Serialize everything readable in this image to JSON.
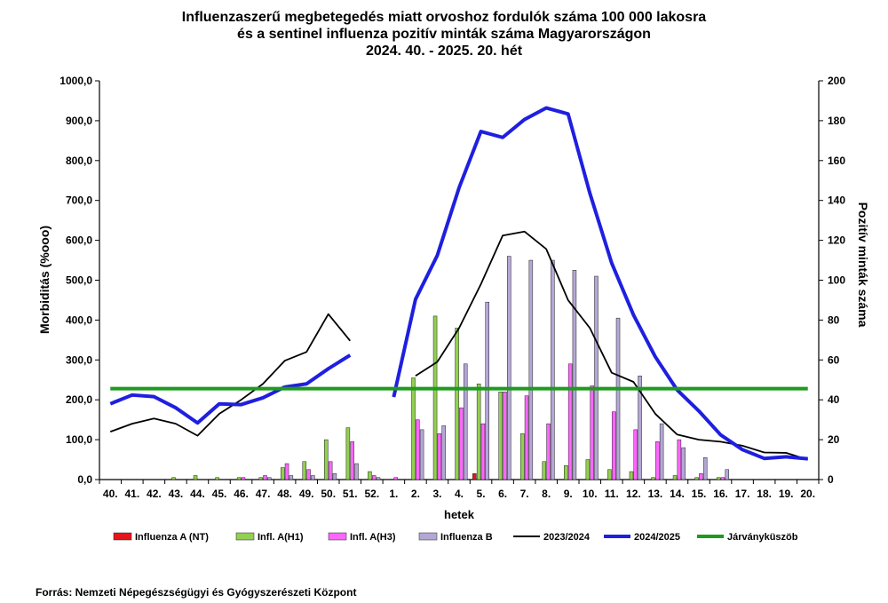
{
  "chart_data": {
    "type": "bar",
    "title": [
      "Influenzaszerű megbetegedés miatt orvoshoz fordulók száma 100 000 lakosra",
      "és a sentinel influenza pozitív minták száma Magyarországon",
      "2024. 40. - 2025. 20. hét"
    ],
    "xlabel": "hetek",
    "ylabel": "Morbiditás (%ooo)",
    "y2label": "Pozitív minták száma",
    "categories": [
      "40.",
      "41.",
      "42.",
      "43.",
      "44.",
      "45.",
      "46.",
      "47.",
      "48.",
      "49.",
      "50.",
      "51.",
      "52.",
      "1.",
      "2.",
      "3.",
      "4.",
      "5.",
      "6.",
      "7.",
      "8.",
      "9.",
      "10.",
      "11.",
      "12.",
      "13.",
      "14.",
      "15.",
      "16.",
      "17.",
      "18.",
      "19.",
      "20."
    ],
    "y_axis": {
      "min": 0,
      "max": 1000,
      "step": 100,
      "tick_labels": [
        "0,0",
        "100,0",
        "200,0",
        "300,0",
        "400,0",
        "500,0",
        "600,0",
        "700,0",
        "800,0",
        "900,0",
        "1000,0"
      ]
    },
    "y2_axis": {
      "min": 0,
      "max": 200,
      "step": 20,
      "tick_labels": [
        "0",
        "20",
        "40",
        "60",
        "80",
        "100",
        "120",
        "140",
        "160",
        "180",
        "200"
      ]
    },
    "bar_series": [
      {
        "name": "Influenza A (NT)",
        "color": "#e8141c",
        "axis": "right",
        "values": [
          0,
          0,
          0,
          0,
          0,
          0,
          0,
          0,
          0,
          0,
          0,
          0,
          0,
          0,
          0,
          0,
          0,
          3,
          0,
          0,
          0,
          0,
          0,
          0,
          0,
          0,
          0,
          0,
          0,
          0,
          0,
          0,
          0
        ]
      },
      {
        "name": "Infl. A(H1)",
        "color": "#92d050",
        "axis": "right",
        "values": [
          0,
          0,
          0,
          1,
          2,
          1,
          1,
          1,
          6,
          9,
          20,
          26,
          4,
          0,
          51,
          82,
          76,
          48,
          44,
          23,
          9,
          7,
          10,
          5,
          4,
          1,
          2,
          1,
          1,
          0,
          0,
          0,
          0
        ]
      },
      {
        "name": "Infl. A(H3)",
        "color": "#ff66ff",
        "axis": "right",
        "values": [
          0,
          0,
          0,
          0,
          0,
          0,
          1,
          2,
          8,
          5,
          9,
          19,
          2,
          1,
          30,
          23,
          36,
          28,
          44,
          42,
          28,
          58,
          47,
          34,
          25,
          19,
          20,
          3,
          1,
          0,
          0,
          0,
          0
        ]
      },
      {
        "name": "Influenza B",
        "color": "#b4a7d6",
        "axis": "right",
        "values": [
          0,
          0,
          0,
          0,
          0,
          0,
          0,
          1,
          2,
          2,
          3,
          8,
          1,
          0,
          25,
          27,
          58,
          89,
          112,
          110,
          110,
          105,
          102,
          81,
          52,
          28,
          16,
          11,
          5,
          0,
          0,
          0,
          0
        ]
      }
    ],
    "line_series": [
      {
        "name": "2023/2024",
        "color": "#000000",
        "axis": "left",
        "values": [
          120,
          140,
          153,
          140,
          110,
          165,
          200,
          240,
          298,
          320,
          415,
          348,
          null,
          null,
          null,
          null,
          null,
          null,
          null,
          null,
          null,
          null,
          null,
          null,
          null,
          null,
          null,
          null,
          null,
          null,
          null,
          null,
          null
        ],
        "values_2025": [
          null,
          null,
          null,
          null,
          null,
          null,
          null,
          null,
          null,
          null,
          null,
          null,
          null,
          null,
          260,
          295,
          380,
          490,
          612,
          622,
          578,
          450,
          380,
          268,
          245,
          165,
          113,
          100,
          95,
          85,
          68,
          67,
          50
        ]
      },
      {
        "name": "2024/2025",
        "color": "#1f1fe0",
        "axis": "left",
        "values": [
          190,
          212,
          208,
          180,
          142,
          190,
          188,
          205,
          232,
          240,
          278,
          312,
          null,
          207,
          452,
          562,
          732,
          873,
          858,
          903,
          932,
          917,
          718,
          543,
          413,
          308,
          225,
          172,
          112,
          75,
          53,
          57,
          52
        ]
      },
      {
        "name": "Járványküszöb",
        "color": "#1e9a1e",
        "axis": "left",
        "value": 228
      }
    ]
  },
  "source": "Forrás: Nemzeti Népegészségügyi és Gyógyszerészeti Központ"
}
